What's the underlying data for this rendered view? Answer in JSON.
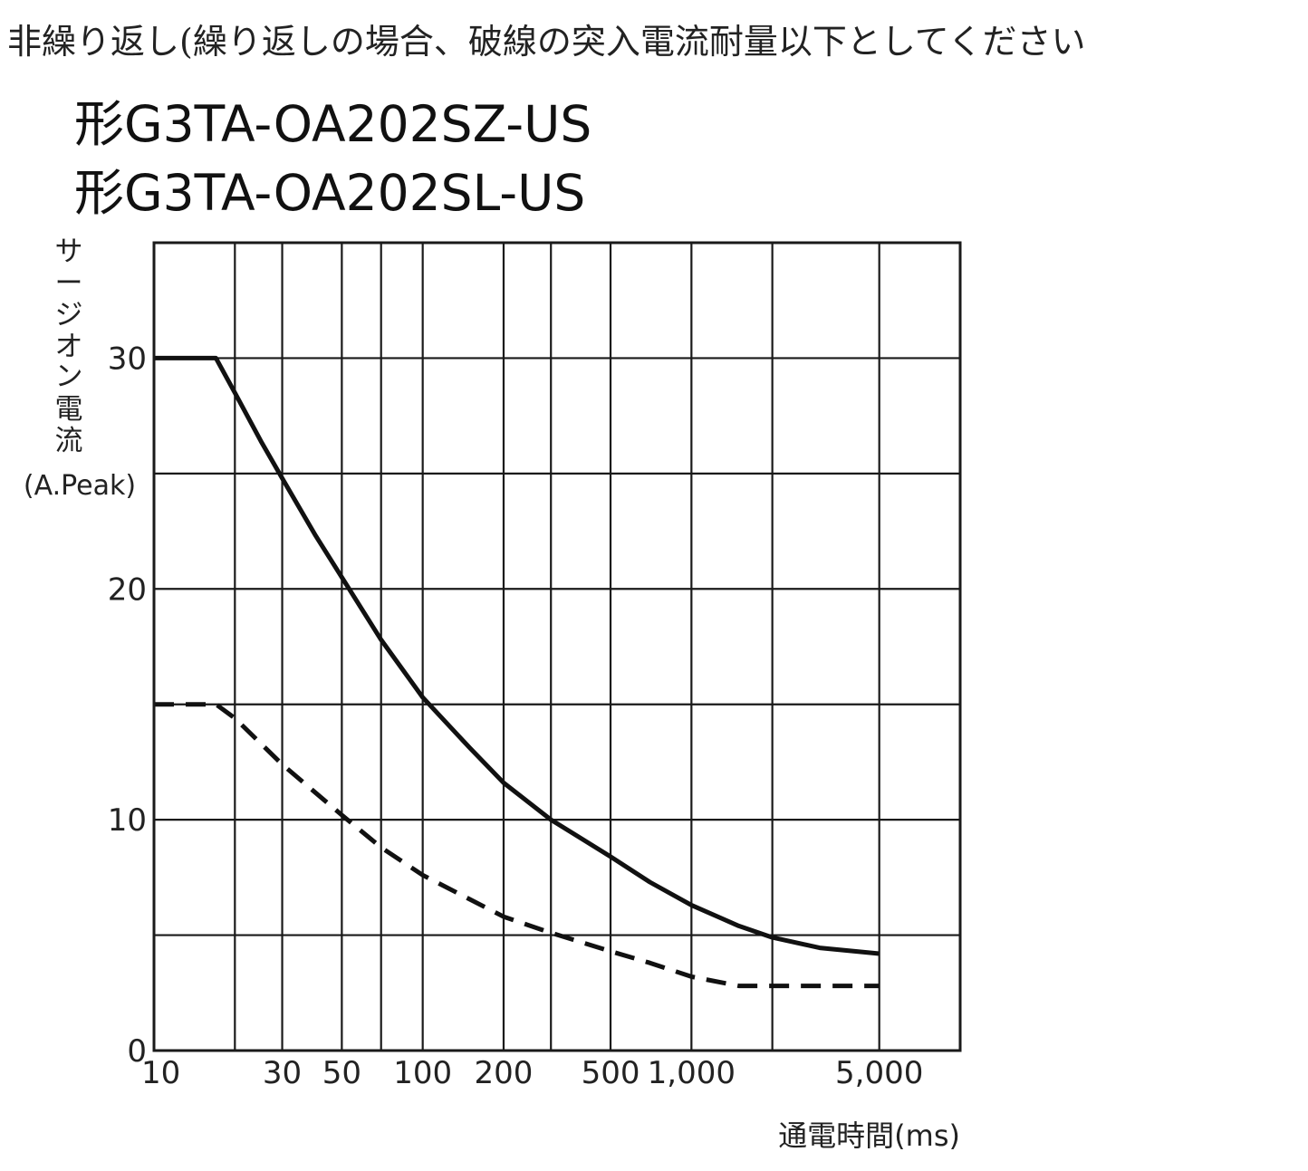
{
  "header": {
    "note": "非繰り返し(繰り返しの場合、破線の突入電流耐量以下としてください"
  },
  "models": [
    "形G3TA-OA202SZ-US",
    "形G3TA-OA202SL-US"
  ],
  "chart_data": {
    "type": "line",
    "xscale": "log",
    "xlim": [
      10,
      10000
    ],
    "ylim": [
      0,
      35
    ],
    "xlabel": "通電時間(ms)",
    "ylabel_lines": [
      "サ",
      "ー",
      "ジ",
      "オ",
      "ン",
      "電",
      "流"
    ],
    "ylabel_unit": "(A.Peak)",
    "x_ticks": [
      {
        "value": 10,
        "label": "10"
      },
      {
        "value": 30,
        "label": "30"
      },
      {
        "value": 50,
        "label": "50"
      },
      {
        "value": 100,
        "label": "100"
      },
      {
        "value": 200,
        "label": "200"
      },
      {
        "value": 500,
        "label": "500"
      },
      {
        "value": 1000,
        "label": "1,000"
      },
      {
        "value": 5000,
        "label": "5,000"
      }
    ],
    "x_gridlines": [
      20,
      30,
      50,
      70,
      100,
      200,
      300,
      500,
      1000,
      2000,
      5000
    ],
    "y_ticks": [
      {
        "value": 0,
        "label": "0"
      },
      {
        "value": 10,
        "label": "10"
      },
      {
        "value": 20,
        "label": "20"
      },
      {
        "value": 30,
        "label": "30"
      }
    ],
    "y_gridlines": [
      5,
      10,
      15,
      20,
      25,
      30
    ],
    "series": [
      {
        "style": "solid",
        "x": [
          10,
          17,
          20,
          25,
          30,
          40,
          50,
          70,
          100,
          150,
          200,
          300,
          500,
          700,
          1000,
          1500,
          2000,
          3000,
          5000
        ],
        "y": [
          30,
          30,
          28.5,
          26.4,
          24.8,
          22.3,
          20.5,
          17.8,
          15.3,
          13.1,
          11.6,
          10.0,
          8.4,
          7.3,
          6.3,
          5.4,
          4.9,
          4.45,
          4.2
        ]
      },
      {
        "style": "dashed",
        "x": [
          10,
          17,
          20,
          30,
          50,
          70,
          100,
          200,
          300,
          500,
          700,
          1000,
          1500,
          2000,
          3000,
          5000
        ],
        "y": [
          15,
          15,
          14.4,
          12.4,
          10.2,
          8.8,
          7.6,
          5.8,
          5.1,
          4.3,
          3.8,
          3.2,
          2.8,
          2.8,
          2.8,
          2.8
        ]
      }
    ]
  }
}
